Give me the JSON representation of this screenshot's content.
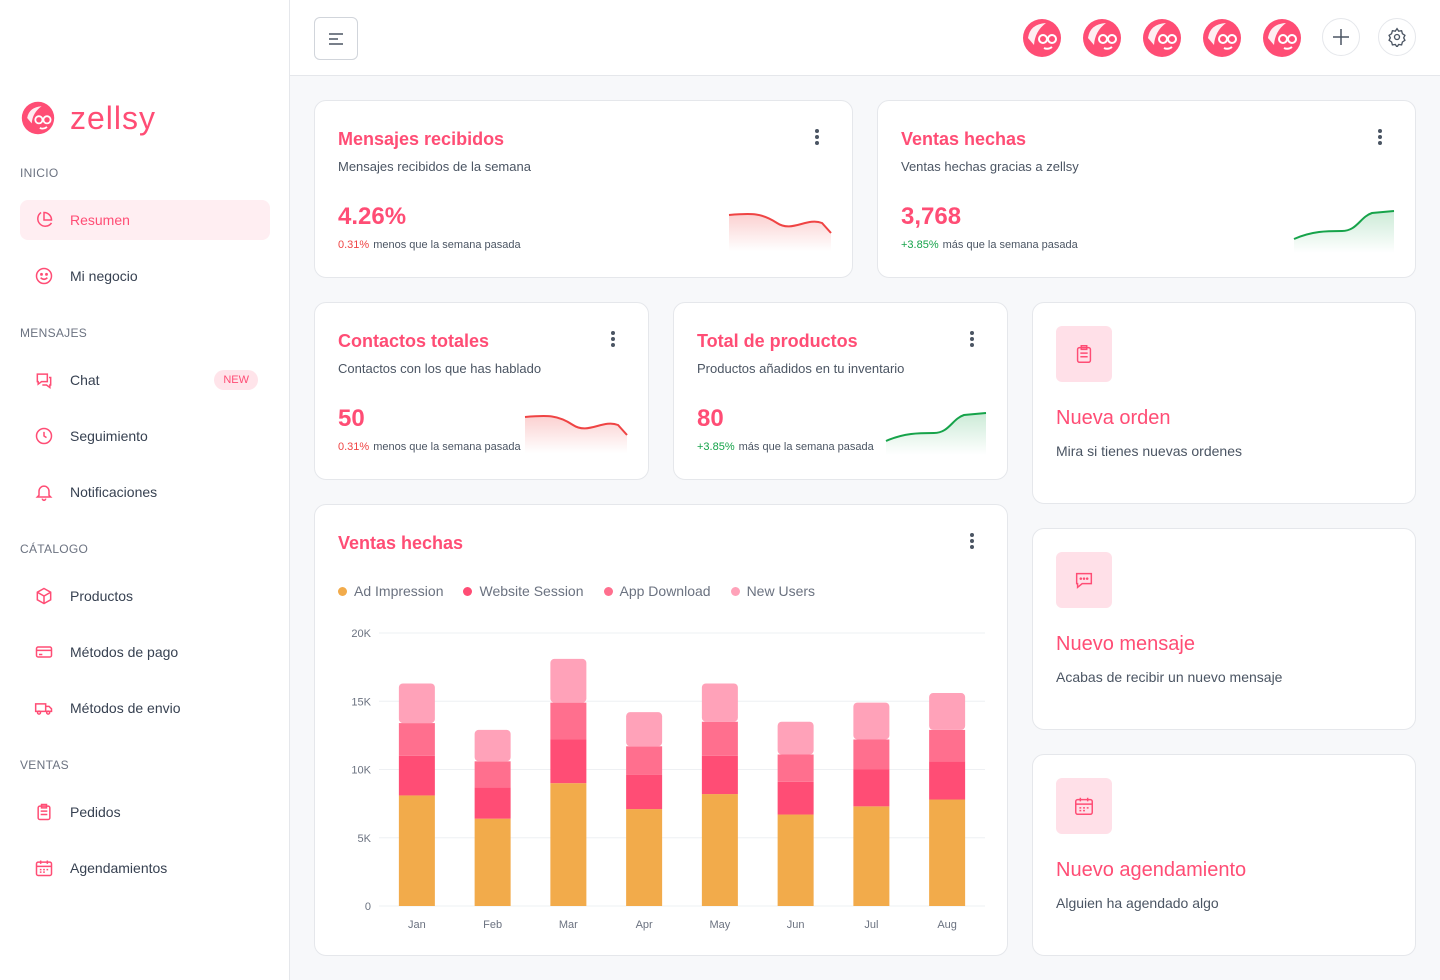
{
  "brand": {
    "name": "zellsy",
    "accent": "#ff4d75"
  },
  "sidebar": {
    "sections": [
      {
        "label": "INICIO",
        "items": [
          {
            "label": "Resumen",
            "icon": "pie-chart-icon",
            "active": true
          },
          {
            "label": "Mi negocio",
            "icon": "smile-icon"
          }
        ]
      },
      {
        "label": "MENSAJES",
        "items": [
          {
            "label": "Chat",
            "icon": "chat-icon",
            "badge": "NEW"
          },
          {
            "label": "Seguimiento",
            "icon": "clock-icon"
          },
          {
            "label": "Notificaciones",
            "icon": "bell-icon"
          }
        ]
      },
      {
        "label": "CÁTALOGO",
        "items": [
          {
            "label": "Productos",
            "icon": "box-icon"
          },
          {
            "label": "Métodos de pago",
            "icon": "credit-card-icon"
          },
          {
            "label": "Métodos de envio",
            "icon": "truck-icon"
          }
        ]
      },
      {
        "label": "VENTAS",
        "items": [
          {
            "label": "Pedidos",
            "icon": "clipboard-icon"
          },
          {
            "label": "Agendamientos",
            "icon": "calendar-icon"
          }
        ]
      }
    ]
  },
  "header": {
    "avatar_count": 5,
    "add_icon": "plus-icon",
    "settings_icon": "gear-icon",
    "menu_icon": "menu-icon"
  },
  "stats": [
    {
      "title": "Mensajes recibidos",
      "subtitle": "Mensajes recibidos de la semana",
      "value": "4.26%",
      "delta": "0.31%",
      "delta_text": "menos que la semana pasada",
      "trend": "down"
    },
    {
      "title": "Ventas hechas",
      "subtitle": "Ventas hechas gracias a zellsy",
      "value": "3,768",
      "delta": "+3.85%",
      "delta_text": "más que la semana pasada",
      "trend": "up"
    },
    {
      "title": "Contactos totales",
      "subtitle": "Contactos con los que has hablado",
      "value": "50",
      "delta": "0.31%",
      "delta_text": "menos que la semana pasada",
      "trend": "down"
    },
    {
      "title": "Total de productos",
      "subtitle": "Productos añadidos en tu inventario",
      "value": "80",
      "delta": "+3.85%",
      "delta_text": "más que la semana pasada",
      "trend": "up"
    }
  ],
  "actions": [
    {
      "title": "Nueva orden",
      "subtitle": "Mira si tienes nuevas ordenes",
      "icon": "clipboard-icon"
    },
    {
      "title": "Nuevo mensaje",
      "subtitle": "Acabas de recibir un nuevo mensaje",
      "icon": "message-icon"
    },
    {
      "title": "Nuevo agendamiento",
      "subtitle": "Alguien ha agendado algo",
      "icon": "calendar-icon"
    }
  ],
  "chart_card": {
    "title": "Ventas hechas"
  },
  "chart_data": {
    "type": "bar",
    "stacked": true,
    "title": "Ventas hechas",
    "categories": [
      "Jan",
      "Feb",
      "Mar",
      "Apr",
      "May",
      "Jun",
      "Jul",
      "Aug"
    ],
    "ylim": [
      0,
      20000
    ],
    "yticks": [
      {
        "value": 0,
        "label": "0"
      },
      {
        "value": 5000,
        "label": "5K"
      },
      {
        "value": 10000,
        "label": "10K"
      },
      {
        "value": 15000,
        "label": "15K"
      },
      {
        "value": 20000,
        "label": "20K"
      }
    ],
    "series": [
      {
        "name": "Ad Impression",
        "color": "#f2ab4b",
        "values": [
          8100,
          6400,
          9000,
          7100,
          8200,
          6700,
          7300,
          7800
        ]
      },
      {
        "name": "Website Session",
        "color": "#ff4d75",
        "values": [
          2900,
          2300,
          3200,
          2500,
          2800,
          2400,
          2700,
          2800
        ]
      },
      {
        "name": "App Download",
        "color": "#ff6f8e",
        "values": [
          2400,
          1900,
          2700,
          2100,
          2500,
          2000,
          2200,
          2300
        ]
      },
      {
        "name": "New Users",
        "color": "#ffa2b9",
        "values": [
          2900,
          2300,
          3200,
          2500,
          2800,
          2400,
          2700,
          2700
        ]
      }
    ]
  }
}
